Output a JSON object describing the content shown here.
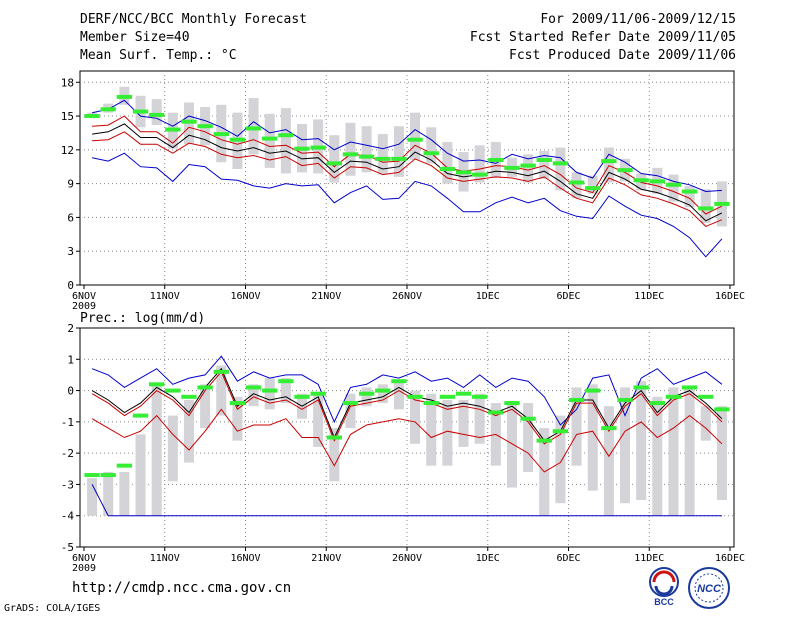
{
  "header": {
    "title": "DERF/NCC/BCC Monthly Forecast",
    "member_size": "Member Size=40",
    "variable": "Mean Surf. Temp.: °C",
    "period": "For 2009/11/06-2009/12/15",
    "refer_date": "Fcst Started Refer Date 2009/11/05",
    "produced_date": "Fcst Produced Date 2009/11/06"
  },
  "footer": {
    "url": "http://cmdp.ncc.cma.gov.cn",
    "credit": "GrADS: COLA/IGES",
    "logo_bcc": "BCC",
    "logo_ncc": "NCC"
  },
  "chart_data": [
    {
      "type": "line",
      "title": "Mean Surf. Temp.: °C",
      "x": [
        "6NOV",
        "7NOV",
        "8NOV",
        "9NOV",
        "10NOV",
        "11NOV",
        "12NOV",
        "13NOV",
        "14NOV",
        "15NOV",
        "16NOV",
        "17NOV",
        "18NOV",
        "19NOV",
        "20NOV",
        "21NOV",
        "22NOV",
        "23NOV",
        "24NOV",
        "25NOV",
        "26NOV",
        "27NOV",
        "28NOV",
        "29NOV",
        "30NOV",
        "1DEC",
        "2DEC",
        "3DEC",
        "4DEC",
        "5DEC",
        "6DEC",
        "7DEC",
        "8DEC",
        "9DEC",
        "10DEC",
        "11DEC",
        "12DEC",
        "13DEC",
        "14DEC",
        "15DEC"
      ],
      "xticks": [
        "6NOV",
        "11NOV",
        "16NOV",
        "21NOV",
        "26NOV",
        "1DEC",
        "6DEC",
        "11DEC",
        "16DEC"
      ],
      "year_label": "2009",
      "ylim": [
        0,
        19
      ],
      "yticks": [
        0,
        3,
        6,
        9,
        12,
        15,
        18
      ],
      "grid": true,
      "series": [
        {
          "name": "max",
          "color": "#0000cc",
          "values": [
            15.3,
            15.6,
            16.4,
            15.0,
            14.8,
            14.1,
            15.0,
            14.6,
            14.0,
            13.2,
            14.5,
            13.5,
            13.8,
            12.9,
            13.0,
            12.0,
            12.7,
            12.4,
            12.1,
            12.5,
            13.8,
            12.9,
            11.7,
            11.0,
            11.1,
            10.8,
            11.6,
            11.2,
            11.5,
            11.3,
            10.0,
            9.5,
            11.6,
            10.9,
            9.9,
            9.7,
            9.2,
            8.9,
            8.3,
            8.4
          ]
        },
        {
          "name": "upper",
          "color": "#cc0000",
          "values": [
            14.1,
            14.2,
            15.0,
            13.6,
            13.6,
            12.6,
            14.0,
            13.6,
            12.9,
            12.5,
            12.9,
            12.3,
            12.4,
            11.7,
            11.8,
            10.5,
            11.6,
            11.5,
            10.9,
            11.0,
            12.4,
            11.7,
            10.4,
            10.1,
            10.3,
            10.6,
            10.5,
            10.2,
            10.6,
            9.8,
            8.6,
            8.2,
            10.6,
            10.0,
            9.1,
            8.8,
            8.3,
            7.7,
            6.3,
            7.0
          ]
        },
        {
          "name": "mean",
          "color": "#000000",
          "values": [
            13.4,
            13.6,
            14.3,
            13.1,
            13.1,
            12.2,
            13.3,
            12.9,
            12.2,
            11.9,
            12.2,
            11.7,
            11.9,
            11.2,
            11.3,
            10.0,
            11.0,
            10.9,
            10.3,
            10.5,
            11.8,
            11.1,
            9.9,
            9.6,
            9.8,
            10.1,
            10.0,
            9.7,
            10.1,
            9.2,
            8.1,
            7.7,
            10.0,
            9.4,
            8.5,
            8.2,
            7.7,
            7.1,
            5.7,
            6.4
          ]
        },
        {
          "name": "lower",
          "color": "#cc0000",
          "values": [
            12.8,
            12.9,
            13.6,
            12.5,
            12.5,
            11.7,
            12.6,
            12.3,
            11.6,
            11.3,
            11.5,
            11.1,
            11.4,
            10.6,
            10.8,
            9.5,
            10.5,
            10.4,
            9.8,
            10.0,
            11.2,
            10.6,
            9.5,
            9.2,
            9.4,
            9.6,
            9.5,
            9.2,
            9.6,
            8.6,
            7.7,
            7.3,
            9.5,
            8.9,
            8.0,
            7.7,
            7.2,
            6.6,
            5.2,
            5.8
          ]
        },
        {
          "name": "min",
          "color": "#0000cc",
          "values": [
            11.3,
            11.0,
            11.7,
            10.5,
            10.4,
            9.2,
            10.7,
            10.5,
            9.4,
            9.3,
            8.8,
            8.6,
            9.0,
            8.8,
            8.9,
            7.3,
            8.2,
            8.8,
            7.6,
            7.7,
            9.2,
            8.8,
            7.7,
            6.5,
            6.5,
            7.3,
            7.8,
            7.3,
            7.7,
            6.6,
            6.1,
            5.9,
            7.9,
            7.0,
            6.2,
            5.9,
            5.2,
            4.2,
            2.5,
            4.1
          ]
        }
      ],
      "bars": {
        "name": "member range",
        "color": "#d3d3d8",
        "low": [
          14.9,
          15.3,
          16.0,
          14.0,
          14.2,
          12.1,
          12.5,
          12.4,
          10.9,
          10.3,
          11.6,
          10.4,
          9.9,
          10.0,
          9.9,
          9.1,
          9.7,
          10.0,
          9.8,
          9.6,
          11.1,
          10.8,
          9.0,
          8.3,
          9.1,
          9.5,
          9.6,
          9.1,
          9.4,
          8.4,
          7.7,
          8.1,
          9.1,
          9.2,
          8.4,
          8.1,
          7.4,
          6.9,
          5.5,
          5.2
        ],
        "high": [
          15.3,
          16.1,
          17.6,
          16.8,
          16.5,
          15.3,
          16.2,
          15.8,
          16.0,
          15.3,
          16.6,
          15.2,
          15.7,
          14.3,
          14.7,
          13.3,
          14.4,
          14.1,
          13.4,
          14.1,
          15.3,
          14.0,
          12.7,
          11.8,
          12.4,
          12.7,
          11.3,
          11.6,
          11.9,
          12.2,
          10.0,
          9.7,
          12.2,
          11.2,
          9.9,
          10.4,
          9.8,
          8.8,
          8.5,
          9.2
        ]
      },
      "markers": {
        "name": "observation",
        "color": "#33ee33",
        "values": [
          15.0,
          15.6,
          16.7,
          15.4,
          15.1,
          13.8,
          14.5,
          14.1,
          13.4,
          12.9,
          13.9,
          13.0,
          13.3,
          12.1,
          12.2,
          10.8,
          11.6,
          11.4,
          11.2,
          11.2,
          12.9,
          11.7,
          10.3,
          10.0,
          9.8,
          11.1,
          10.4,
          10.6,
          11.1,
          10.8,
          9.1,
          8.6,
          11.0,
          10.2,
          9.3,
          9.2,
          8.9,
          8.3,
          6.8,
          7.2
        ]
      }
    },
    {
      "type": "line",
      "title": "Prec.: log(mm/d)",
      "x": [
        "6NOV",
        "7NOV",
        "8NOV",
        "9NOV",
        "10NOV",
        "11NOV",
        "12NOV",
        "13NOV",
        "14NOV",
        "15NOV",
        "16NOV",
        "17NOV",
        "18NOV",
        "19NOV",
        "20NOV",
        "21NOV",
        "22NOV",
        "23NOV",
        "24NOV",
        "25NOV",
        "26NOV",
        "27NOV",
        "28NOV",
        "29NOV",
        "30NOV",
        "1DEC",
        "2DEC",
        "3DEC",
        "4DEC",
        "5DEC",
        "6DEC",
        "7DEC",
        "8DEC",
        "9DEC",
        "10DEC",
        "11DEC",
        "12DEC",
        "13DEC",
        "14DEC",
        "15DEC"
      ],
      "xticks": [
        "6NOV",
        "11NOV",
        "16NOV",
        "21NOV",
        "26NOV",
        "1DEC",
        "6DEC",
        "11DEC",
        "16DEC"
      ],
      "year_label": "2009",
      "ylim": [
        -5,
        2
      ],
      "yticks": [
        -5,
        -4,
        -3,
        -2,
        -1,
        0,
        1,
        2
      ],
      "grid": true,
      "series": [
        {
          "name": "max",
          "color": "#0000cc",
          "values": [
            0.7,
            0.5,
            0.1,
            0.4,
            0.7,
            0.2,
            0.4,
            0.5,
            1.1,
            0.3,
            0.6,
            0.4,
            0.5,
            0.5,
            0.2,
            -1.0,
            0.1,
            0.2,
            0.5,
            0.4,
            0.6,
            0.3,
            0.4,
            0.1,
            0.5,
            0.1,
            0.4,
            0.3,
            -0.2,
            -1.1,
            -0.6,
            0.4,
            0.5,
            -0.8,
            0.4,
            0.7,
            0.2,
            0.4,
            0.6,
            0.2
          ]
        },
        {
          "name": "mean",
          "color": "#000000",
          "values": [
            0.0,
            -0.3,
            -0.7,
            -0.4,
            0.1,
            -0.2,
            -0.7,
            0.1,
            0.7,
            -0.5,
            -0.1,
            -0.3,
            -0.2,
            -0.5,
            -0.2,
            -1.5,
            -0.4,
            -0.3,
            -0.2,
            0.1,
            -0.2,
            -0.3,
            -0.5,
            -0.4,
            -0.5,
            -0.7,
            -0.5,
            -0.9,
            -1.6,
            -1.3,
            -0.3,
            -0.3,
            -1.2,
            -0.4,
            0.0,
            -0.7,
            -0.2,
            0.0,
            -0.4,
            -0.9
          ]
        },
        {
          "name": "upper",
          "color": "#cc0000",
          "values": [
            -0.1,
            -0.4,
            -0.8,
            -0.5,
            0.0,
            -0.3,
            -0.8,
            0.0,
            0.6,
            -0.6,
            -0.2,
            -0.4,
            -0.3,
            -0.6,
            -0.3,
            -1.6,
            -0.5,
            -0.4,
            -0.3,
            0.0,
            -0.3,
            -0.4,
            -0.6,
            -0.5,
            -0.6,
            -0.8,
            -0.6,
            -1.0,
            -1.7,
            -1.4,
            -0.4,
            -0.4,
            -1.3,
            -0.5,
            -0.1,
            -0.8,
            -0.3,
            -0.1,
            -0.5,
            -1.0
          ]
        },
        {
          "name": "lower",
          "color": "#cc0000",
          "values": [
            -0.9,
            -1.2,
            -1.5,
            -1.3,
            -0.8,
            -1.4,
            -1.9,
            -1.3,
            -0.6,
            -1.3,
            -1.1,
            -1.1,
            -0.9,
            -1.5,
            -1.5,
            -2.4,
            -1.4,
            -1.1,
            -1.0,
            -0.9,
            -1.0,
            -1.5,
            -1.3,
            -1.4,
            -1.5,
            -1.4,
            -1.7,
            -2.0,
            -2.6,
            -2.3,
            -1.4,
            -1.3,
            -2.1,
            -1.3,
            -1.0,
            -1.5,
            -1.2,
            -0.8,
            -1.2,
            -1.7
          ]
        },
        {
          "name": "min",
          "color": "#0000cc",
          "values": [
            -3.0,
            -4.0,
            -4.0,
            -4.0,
            -4.0,
            -4.0,
            -4.0,
            -4.0,
            -4.0,
            -4.0,
            -4.0,
            -4.0,
            -4.0,
            -4.0,
            -4.0,
            -4.0,
            -4.0,
            -4.0,
            -4.0,
            -4.0,
            -4.0,
            -4.0,
            -4.0,
            -4.0,
            -4.0,
            -4.0,
            -4.0,
            -4.0,
            -4.0,
            -4.0,
            -4.0,
            -4.0,
            -4.0,
            -4.0,
            -4.0,
            -4.0,
            -4.0,
            -4.0,
            -4.0,
            -4.0
          ]
        }
      ],
      "bars": {
        "name": "member range",
        "color": "#d3d3d8",
        "low": [
          -4.0,
          -4.0,
          -4.0,
          -4.0,
          -4.0,
          -2.9,
          -2.3,
          -1.2,
          -0.8,
          -1.6,
          -0.5,
          -0.6,
          -0.4,
          -0.9,
          -1.8,
          -2.9,
          -1.2,
          -0.5,
          -0.4,
          -0.6,
          -1.7,
          -2.4,
          -2.4,
          -1.8,
          -1.7,
          -2.4,
          -3.1,
          -2.6,
          -4.0,
          -3.6,
          -2.4,
          -3.2,
          -4.0,
          -3.6,
          -3.5,
          -4.0,
          -4.0,
          -4.0,
          -1.6,
          -3.5
        ],
        "high": [
          -2.8,
          -2.6,
          -2.6,
          -1.4,
          0.2,
          -0.8,
          -0.3,
          0.2,
          0.8,
          -0.2,
          0.2,
          0.4,
          0.4,
          -0.1,
          -0.1,
          -1.2,
          -0.1,
          0.1,
          0.2,
          0.3,
          0.0,
          -0.1,
          -0.3,
          -0.3,
          -0.1,
          -0.4,
          -0.4,
          -0.4,
          -1.2,
          -0.8,
          0.1,
          0.2,
          -0.5,
          0.1,
          0.3,
          -0.2,
          0.1,
          0.1,
          -0.5,
          -0.5
        ]
      },
      "markers": {
        "name": "observation",
        "color": "#33ee33",
        "values": [
          -2.7,
          -2.7,
          -2.4,
          -0.8,
          0.2,
          0.0,
          -0.2,
          0.1,
          0.6,
          -0.4,
          0.1,
          0.0,
          0.3,
          -0.2,
          -0.1,
          -1.5,
          -0.4,
          -0.1,
          0.0,
          0.3,
          -0.2,
          -0.4,
          -0.2,
          -0.1,
          -0.2,
          -0.7,
          -0.4,
          -0.9,
          -1.6,
          -1.3,
          -0.3,
          0.0,
          -1.2,
          -0.3,
          0.1,
          -0.4,
          -0.2,
          0.1,
          -0.2,
          -0.6
        ]
      }
    }
  ]
}
